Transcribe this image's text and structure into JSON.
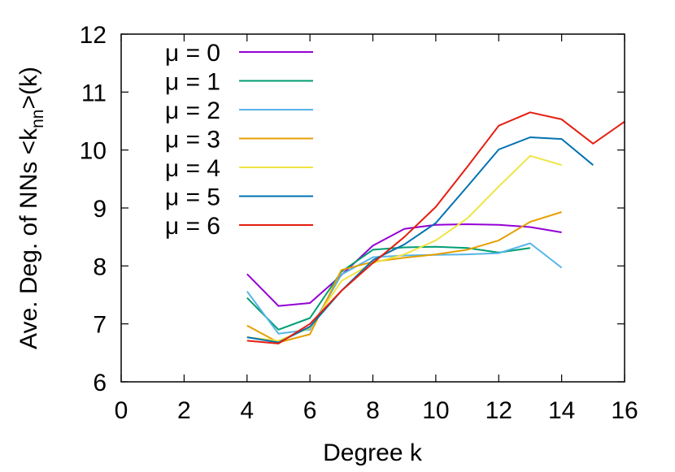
{
  "chart_data": {
    "type": "line",
    "xlabel": "Degree k",
    "ylabel": "Ave. Deg. of NNs <k",
    "ylabel_sub": "nn",
    "ylabel_tail": ">(k)",
    "xlim": [
      0,
      16
    ],
    "ylim": [
      6,
      12
    ],
    "xticks": [
      "0",
      "2",
      "4",
      "6",
      "8",
      "10",
      "12",
      "14",
      "16"
    ],
    "yticks": [
      "6",
      "7",
      "8",
      "9",
      "10",
      "11",
      "12"
    ],
    "grid": false,
    "legend_position": "top-left",
    "series": [
      {
        "name": "μ = 0",
        "color": "#9400d3",
        "x": [
          4,
          5,
          6,
          7,
          8,
          9,
          10,
          11,
          12,
          13,
          14
        ],
        "y": [
          7.86,
          7.31,
          7.36,
          7.84,
          8.35,
          8.64,
          8.71,
          8.72,
          8.71,
          8.67,
          8.58
        ]
      },
      {
        "name": "μ = 1",
        "color": "#009e73",
        "x": [
          4,
          5,
          6,
          7,
          8,
          9,
          10,
          11,
          12,
          13
        ],
        "y": [
          7.45,
          6.9,
          7.1,
          7.9,
          8.28,
          8.32,
          8.33,
          8.31,
          8.23,
          8.31
        ]
      },
      {
        "name": "μ = 2",
        "color": "#56b4e9",
        "x": [
          4,
          5,
          6,
          7,
          8,
          9,
          10,
          11,
          12,
          13,
          14
        ],
        "y": [
          7.56,
          6.83,
          6.9,
          7.85,
          8.15,
          8.18,
          8.19,
          8.2,
          8.22,
          8.39,
          7.97
        ]
      },
      {
        "name": "μ = 3",
        "color": "#e69f00",
        "x": [
          4,
          5,
          6,
          7,
          8,
          9,
          10,
          11,
          12,
          13,
          14
        ],
        "y": [
          6.97,
          6.68,
          6.82,
          7.93,
          8.07,
          8.14,
          8.2,
          8.28,
          8.44,
          8.76,
          8.93
        ]
      },
      {
        "name": "μ = 4",
        "color": "#f0e442",
        "x": [
          4,
          5,
          6,
          7,
          8,
          9,
          10,
          11,
          12,
          13,
          14
        ],
        "y": [
          6.77,
          6.71,
          6.93,
          7.74,
          8.05,
          8.2,
          8.44,
          8.82,
          9.37,
          9.9,
          9.74
        ]
      },
      {
        "name": "μ = 5",
        "color": "#0072b2",
        "x": [
          4,
          5,
          6,
          7,
          8,
          9,
          10,
          11,
          12,
          13,
          14,
          15
        ],
        "y": [
          6.77,
          6.68,
          6.95,
          7.57,
          8.1,
          8.37,
          8.74,
          9.37,
          10.01,
          10.22,
          10.19,
          9.74
        ]
      },
      {
        "name": "μ = 6",
        "color": "#e51e10",
        "x": [
          4,
          5,
          6,
          7,
          8,
          9,
          10,
          11,
          12,
          13,
          14,
          15,
          16
        ],
        "y": [
          6.71,
          6.66,
          7.0,
          7.57,
          8.05,
          8.5,
          9.02,
          9.71,
          10.42,
          10.65,
          10.53,
          10.11,
          10.49
        ]
      }
    ]
  }
}
